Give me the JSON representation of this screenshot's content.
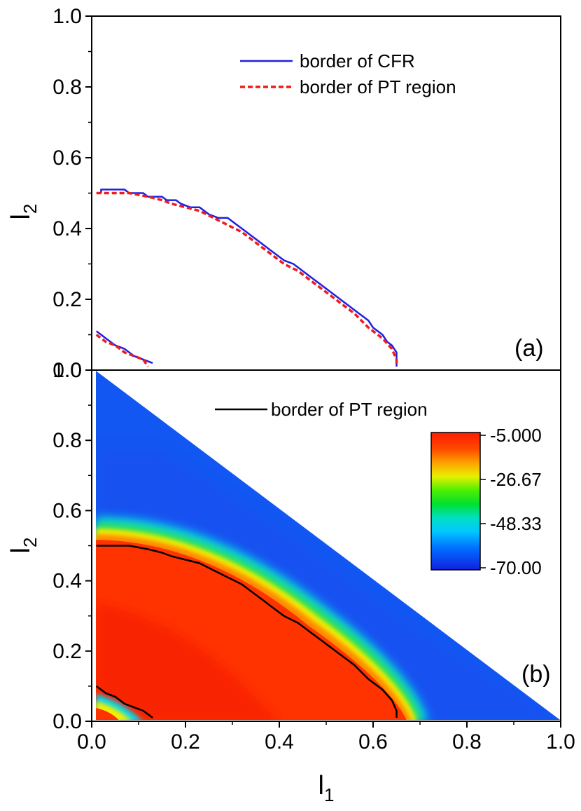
{
  "chart_data": [
    {
      "type": "line",
      "panel_label": "(a)",
      "xlabel": "l",
      "xlabel_sub": "1",
      "ylabel": "l",
      "ylabel_sub": "2",
      "xlim": [
        0.0,
        1.0
      ],
      "ylim": [
        0.0,
        1.0
      ],
      "y_ticks": [
        "0.0",
        "0.2",
        "0.4",
        "0.6",
        "0.8",
        "1.0"
      ],
      "legend_position": "top-right",
      "series": [
        {
          "name": "border of CFR",
          "color": "#1f1fe0",
          "style": "solid",
          "segments": [
            [
              [
                0.02,
                0.5
              ],
              [
                0.02,
                0.51
              ],
              [
                0.07,
                0.51
              ],
              [
                0.08,
                0.5
              ],
              [
                0.11,
                0.5
              ],
              [
                0.12,
                0.49
              ],
              [
                0.15,
                0.49
              ],
              [
                0.16,
                0.48
              ],
              [
                0.18,
                0.48
              ],
              [
                0.19,
                0.47
              ],
              [
                0.21,
                0.46
              ],
              [
                0.23,
                0.46
              ],
              [
                0.24,
                0.45
              ],
              [
                0.25,
                0.44
              ],
              [
                0.27,
                0.43
              ],
              [
                0.29,
                0.43
              ],
              [
                0.31,
                0.41
              ],
              [
                0.33,
                0.39
              ],
              [
                0.34,
                0.38
              ],
              [
                0.35,
                0.37
              ],
              [
                0.37,
                0.35
              ],
              [
                0.39,
                0.33
              ],
              [
                0.41,
                0.31
              ],
              [
                0.43,
                0.3
              ],
              [
                0.45,
                0.28
              ],
              [
                0.47,
                0.26
              ],
              [
                0.49,
                0.24
              ],
              [
                0.51,
                0.22
              ],
              [
                0.53,
                0.2
              ],
              [
                0.55,
                0.18
              ],
              [
                0.57,
                0.16
              ],
              [
                0.59,
                0.14
              ],
              [
                0.6,
                0.12
              ],
              [
                0.62,
                0.1
              ],
              [
                0.63,
                0.08
              ],
              [
                0.64,
                0.07
              ],
              [
                0.65,
                0.05
              ],
              [
                0.65,
                0.01
              ]
            ],
            [
              [
                0.01,
                0.11
              ],
              [
                0.03,
                0.09
              ],
              [
                0.05,
                0.07
              ],
              [
                0.07,
                0.06
              ],
              [
                0.09,
                0.04
              ],
              [
                0.11,
                0.03
              ],
              [
                0.13,
                0.02
              ]
            ]
          ]
        },
        {
          "name": "border of PT region",
          "color": "#ee1c1c",
          "style": "dashed",
          "segments": [
            [
              [
                0.01,
                0.5
              ],
              [
                0.08,
                0.5
              ],
              [
                0.12,
                0.49
              ],
              [
                0.15,
                0.48
              ],
              [
                0.17,
                0.47
              ],
              [
                0.2,
                0.46
              ],
              [
                0.23,
                0.45
              ],
              [
                0.26,
                0.43
              ],
              [
                0.29,
                0.41
              ],
              [
                0.32,
                0.39
              ],
              [
                0.35,
                0.36
              ],
              [
                0.38,
                0.33
              ],
              [
                0.41,
                0.3
              ],
              [
                0.44,
                0.28
              ],
              [
                0.47,
                0.25
              ],
              [
                0.5,
                0.22
              ],
              [
                0.53,
                0.19
              ],
              [
                0.56,
                0.16
              ],
              [
                0.59,
                0.12
              ],
              [
                0.62,
                0.09
              ],
              [
                0.64,
                0.06
              ],
              [
                0.65,
                0.03
              ],
              [
                0.65,
                0.01
              ]
            ],
            [
              [
                0.01,
                0.1
              ],
              [
                0.03,
                0.08
              ],
              [
                0.05,
                0.07
              ],
              [
                0.07,
                0.05
              ],
              [
                0.09,
                0.04
              ],
              [
                0.11,
                0.03
              ],
              [
                0.12,
                0.01
              ]
            ]
          ]
        }
      ]
    },
    {
      "type": "heatmap",
      "panel_label": "(b)",
      "xlabel": "l",
      "xlabel_sub": "1",
      "ylabel": "l",
      "ylabel_sub": "2",
      "xlim": [
        0.0,
        1.0
      ],
      "ylim": [
        0.0,
        1.0
      ],
      "x_ticks": [
        "0.0",
        "0.2",
        "0.4",
        "0.6",
        "0.8",
        "1.0"
      ],
      "y_ticks": [
        "0.0",
        "0.2",
        "0.4",
        "0.6",
        "0.8",
        "1.0"
      ],
      "domain": "l1 + l2 <= 1",
      "colorbar": {
        "ticks": [
          "-5.000",
          "-26.67",
          "-48.33",
          "-70.00"
        ],
        "min": -70.0,
        "max": -5.0,
        "colormap": "jet"
      },
      "legend_position": "top-center",
      "series": [
        {
          "name": "border of PT region",
          "color": "#000000",
          "style": "solid",
          "segments": [
            [
              [
                0.01,
                0.5
              ],
              [
                0.08,
                0.5
              ],
              [
                0.12,
                0.49
              ],
              [
                0.15,
                0.48
              ],
              [
                0.17,
                0.47
              ],
              [
                0.2,
                0.46
              ],
              [
                0.23,
                0.45
              ],
              [
                0.26,
                0.43
              ],
              [
                0.29,
                0.41
              ],
              [
                0.32,
                0.39
              ],
              [
                0.35,
                0.36
              ],
              [
                0.38,
                0.33
              ],
              [
                0.41,
                0.3
              ],
              [
                0.44,
                0.28
              ],
              [
                0.47,
                0.25
              ],
              [
                0.5,
                0.22
              ],
              [
                0.53,
                0.19
              ],
              [
                0.56,
                0.16
              ],
              [
                0.59,
                0.12
              ],
              [
                0.62,
                0.09
              ],
              [
                0.64,
                0.06
              ],
              [
                0.65,
                0.03
              ],
              [
                0.65,
                0.01
              ]
            ],
            [
              [
                0.01,
                0.1
              ],
              [
                0.03,
                0.08
              ],
              [
                0.05,
                0.07
              ],
              [
                0.07,
                0.05
              ],
              [
                0.09,
                0.04
              ],
              [
                0.11,
                0.03
              ],
              [
                0.13,
                0.01
              ]
            ]
          ]
        }
      ]
    }
  ]
}
